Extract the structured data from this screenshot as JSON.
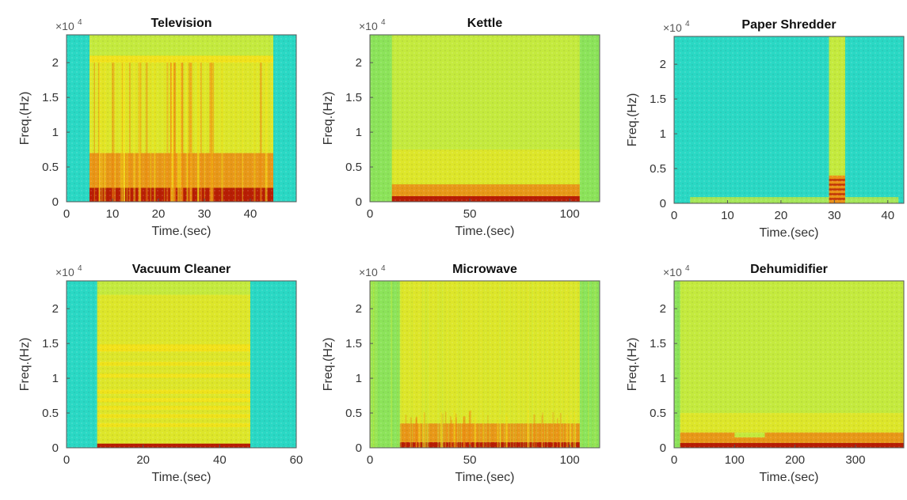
{
  "colors": {
    "background_teal": "#2ad8c4",
    "background_green": "#8ce35a",
    "low_energy_lime": "#c4ea3e",
    "mid_yellow": "#f2e21a",
    "high_orange": "#ee8a12",
    "peak_red": "#b81e05",
    "axis": "#555555"
  },
  "chart_data": [
    {
      "type": "heatmap",
      "title": "Television",
      "xlabel": "Time.(sec)",
      "ylabel": "Freq.(Hz)",
      "exponent_label": "×10^4",
      "exponent_base": "×10",
      "exponent_power": "4",
      "xlim": [
        0,
        50
      ],
      "ylim": [
        0,
        24000
      ],
      "xticks": [
        0,
        10,
        20,
        30,
        40
      ],
      "xtick_labels": [
        "0",
        "10",
        "20",
        "30",
        "40"
      ],
      "yticks": [
        0,
        0.5,
        1,
        1.5,
        2
      ],
      "ytick_labels": [
        "0",
        "0.5",
        "1",
        "1.5",
        "2"
      ],
      "background": "teal",
      "active_interval_sec": [
        5,
        45
      ],
      "activity_bands_hz": [
        [
          0,
          2000,
          "peak"
        ],
        [
          2000,
          7000,
          "high"
        ],
        [
          7000,
          20000,
          "mid"
        ],
        [
          20000,
          21000,
          "strong-line"
        ]
      ],
      "pattern": "vertical bursts"
    },
    {
      "type": "heatmap",
      "title": "Kettle",
      "xlabel": "Time.(sec)",
      "ylabel": "Freq.(Hz)",
      "exponent_label": "×10^4",
      "exponent_base": "×10",
      "exponent_power": "4",
      "xlim": [
        0,
        115
      ],
      "ylim": [
        0,
        24000
      ],
      "xticks": [
        0,
        50,
        100
      ],
      "xtick_labels": [
        "0",
        "50",
        "100"
      ],
      "yticks": [
        0,
        0.5,
        1,
        1.5,
        2
      ],
      "ytick_labels": [
        "0",
        "0.5",
        "1",
        "1.5",
        "2"
      ],
      "background": "green",
      "active_interval_sec": [
        11,
        105
      ],
      "activity_bands_hz": [
        [
          0,
          800,
          "peak"
        ],
        [
          800,
          2500,
          "high"
        ],
        [
          2500,
          7500,
          "mid"
        ]
      ],
      "pattern": "steady"
    },
    {
      "type": "heatmap",
      "title": "Paper Shredder",
      "xlabel": "Time.(sec)",
      "ylabel": "Freq.(Hz)",
      "exponent_label": "×10^4",
      "exponent_base": "×10",
      "exponent_power": "4",
      "xlim": [
        0,
        43
      ],
      "ylim": [
        0,
        24000
      ],
      "xticks": [
        0,
        10,
        20,
        30,
        40
      ],
      "xtick_labels": [
        "0",
        "10",
        "20",
        "30",
        "40"
      ],
      "yticks": [
        0,
        0.5,
        1,
        1.5,
        2
      ],
      "ytick_labels": [
        "0",
        "0.5",
        "1",
        "1.5",
        "2"
      ],
      "background": "teal",
      "active_interval_sec": [
        29,
        32
      ],
      "activity_bands_hz": [
        [
          0,
          4000,
          "high"
        ],
        [
          4000,
          24000,
          "mid"
        ]
      ],
      "pattern": "short burst"
    },
    {
      "type": "heatmap",
      "title": "Vacuum Cleaner",
      "xlabel": "Time.(sec)",
      "ylabel": "Freq.(Hz)",
      "exponent_label": "×10^4",
      "exponent_base": "×10",
      "exponent_power": "4",
      "xlim": [
        0,
        60
      ],
      "ylim": [
        0,
        24000
      ],
      "xticks": [
        0,
        20,
        40,
        60
      ],
      "xtick_labels": [
        "0",
        "20",
        "40",
        "60"
      ],
      "yticks": [
        0,
        0.5,
        1,
        1.5,
        2
      ],
      "ytick_labels": [
        "0",
        "0.5",
        "1",
        "1.5",
        "2"
      ],
      "background": "teal",
      "active_interval_sec": [
        8,
        48
      ],
      "harmonic_lines_hz": [
        14300,
        12000,
        10300,
        8000,
        6800,
        5700,
        4500,
        3200
      ],
      "activity_bands_hz": [
        [
          0,
          600,
          "peak"
        ],
        [
          600,
          22000,
          "mid"
        ]
      ],
      "pattern": "harmonic lines"
    },
    {
      "type": "heatmap",
      "title": "Microwave",
      "xlabel": "Time.(sec)",
      "ylabel": "Freq.(Hz)",
      "exponent_label": "×10^4",
      "exponent_base": "×10",
      "exponent_power": "4",
      "xlim": [
        0,
        115
      ],
      "ylim": [
        0,
        24000
      ],
      "xticks": [
        0,
        50,
        100
      ],
      "xtick_labels": [
        "0",
        "50",
        "100"
      ],
      "yticks": [
        0,
        0.5,
        1,
        1.5,
        2
      ],
      "ytick_labels": [
        "0",
        "0.5",
        "1",
        "1.5",
        "2"
      ],
      "background": "green",
      "active_interval_sec": [
        15,
        105
      ],
      "activity_bands_hz": [
        [
          0,
          800,
          "peak"
        ],
        [
          800,
          3500,
          "high"
        ],
        [
          3500,
          24000,
          "mid"
        ]
      ],
      "pattern": "periodic bursts"
    },
    {
      "type": "heatmap",
      "title": "Dehumidifier",
      "xlabel": "Time.(sec)",
      "ylabel": "Freq.(Hz)",
      "exponent_label": "×10^4",
      "exponent_base": "×10",
      "exponent_power": "4",
      "xlim": [
        0,
        380
      ],
      "ylim": [
        0,
        24000
      ],
      "xticks": [
        0,
        100,
        200,
        300
      ],
      "xtick_labels": [
        "0",
        "100",
        "200",
        "300"
      ],
      "yticks": [
        0,
        0.5,
        1,
        1.5,
        2
      ],
      "ytick_labels": [
        "0",
        "0.5",
        "1",
        "1.5",
        "2"
      ],
      "background": "green",
      "active_interval_sec": [
        10,
        380
      ],
      "activity_bands_hz": [
        [
          0,
          700,
          "peak"
        ],
        [
          700,
          2200,
          "high"
        ],
        [
          2200,
          5000,
          "mid"
        ]
      ],
      "pattern": "steady"
    }
  ]
}
